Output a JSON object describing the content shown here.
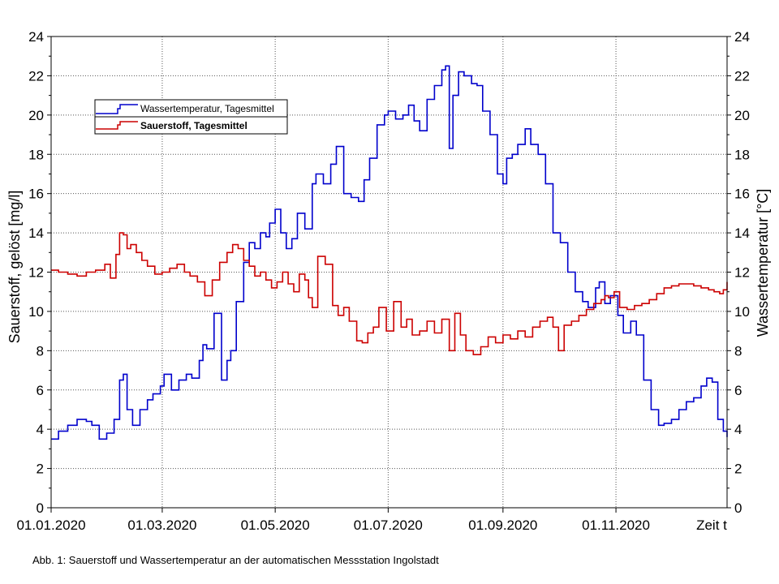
{
  "caption": "Abb. 1: Sauerstoff und Wassertemperatur an der automatischen Messstation Ingolstadt",
  "chart_data": {
    "type": "line",
    "xlabel": "Zeit t",
    "ylabel_left": "Sauerstoff, gelöst [mg/l]",
    "ylabel_right": "Wassertemperatur [°C]",
    "ylim": [
      0,
      24
    ],
    "yticks": [
      0,
      2,
      4,
      6,
      8,
      10,
      12,
      14,
      16,
      18,
      20,
      22,
      24
    ],
    "xlim": [
      "2020-01-01",
      "2020-12-31"
    ],
    "xtick_labels": [
      "01.01.2020",
      "01.03.2020",
      "01.05.2020",
      "01.07.2020",
      "01.09.2020",
      "01.11.2020"
    ],
    "xtick_dates": [
      "2020-01-01",
      "2020-03-01",
      "2020-05-01",
      "2020-07-01",
      "2020-09-01",
      "2020-11-01"
    ],
    "grid": true,
    "legend": "upper-left",
    "series": [
      {
        "name": "Wassertemperatur, Tagesmittel",
        "axis": "right",
        "color": "#0000cc",
        "x": [
          "2020-01-01",
          "2020-01-05",
          "2020-01-10",
          "2020-01-15",
          "2020-01-20",
          "2020-01-23",
          "2020-01-27",
          "2020-01-31",
          "2020-02-04",
          "2020-02-07",
          "2020-02-09",
          "2020-02-11",
          "2020-02-14",
          "2020-02-18",
          "2020-02-22",
          "2020-02-25",
          "2020-02-29",
          "2020-03-02",
          "2020-03-06",
          "2020-03-10",
          "2020-03-14",
          "2020-03-17",
          "2020-03-21",
          "2020-03-23",
          "2020-03-25",
          "2020-03-29",
          "2020-04-02",
          "2020-04-05",
          "2020-04-07",
          "2020-04-10",
          "2020-04-14",
          "2020-04-17",
          "2020-04-20",
          "2020-04-23",
          "2020-04-26",
          "2020-04-28",
          "2020-05-01",
          "2020-05-04",
          "2020-05-07",
          "2020-05-10",
          "2020-05-13",
          "2020-05-17",
          "2020-05-21",
          "2020-05-23",
          "2020-05-27",
          "2020-05-31",
          "2020-06-03",
          "2020-06-07",
          "2020-06-11",
          "2020-06-15",
          "2020-06-18",
          "2020-06-21",
          "2020-06-25",
          "2020-06-29",
          "2020-07-01",
          "2020-07-05",
          "2020-07-09",
          "2020-07-12",
          "2020-07-15",
          "2020-07-18",
          "2020-07-22",
          "2020-07-26",
          "2020-07-30",
          "2020-08-01",
          "2020-08-03",
          "2020-08-05",
          "2020-08-08",
          "2020-08-11",
          "2020-08-15",
          "2020-08-18",
          "2020-08-21",
          "2020-08-25",
          "2020-08-29",
          "2020-09-01",
          "2020-09-03",
          "2020-09-06",
          "2020-09-09",
          "2020-09-13",
          "2020-09-16",
          "2020-09-20",
          "2020-09-24",
          "2020-09-28",
          "2020-10-02",
          "2020-10-06",
          "2020-10-10",
          "2020-10-14",
          "2020-10-17",
          "2020-10-21",
          "2020-10-23",
          "2020-10-26",
          "2020-10-29",
          "2020-11-02",
          "2020-11-05",
          "2020-11-09",
          "2020-11-12",
          "2020-11-16",
          "2020-11-20",
          "2020-11-24",
          "2020-11-27",
          "2020-12-01",
          "2020-12-05",
          "2020-12-09",
          "2020-12-13",
          "2020-12-17",
          "2020-12-20",
          "2020-12-23",
          "2020-12-26",
          "2020-12-29",
          "2020-12-31"
        ],
        "y": [
          3.5,
          3.9,
          4.2,
          4.5,
          4.4,
          4.2,
          3.5,
          3.8,
          4.5,
          6.5,
          6.8,
          5.0,
          4.2,
          5.0,
          5.5,
          5.8,
          6.2,
          6.8,
          6.0,
          6.5,
          6.8,
          6.6,
          7.5,
          8.3,
          8.1,
          9.9,
          6.5,
          7.5,
          8.0,
          10.5,
          12.5,
          13.5,
          13.2,
          14.0,
          13.8,
          14.5,
          15.2,
          14.0,
          13.2,
          13.7,
          15.0,
          14.2,
          16.5,
          17.0,
          16.5,
          17.5,
          18.4,
          16.0,
          15.8,
          15.6,
          16.7,
          17.8,
          19.5,
          20.0,
          20.2,
          19.8,
          20.0,
          20.5,
          19.7,
          19.2,
          20.8,
          21.5,
          22.3,
          22.5,
          18.3,
          21.0,
          22.2,
          22.0,
          21.6,
          21.5,
          20.2,
          19.0,
          17.0,
          16.5,
          17.8,
          18.0,
          18.5,
          19.3,
          18.5,
          18.0,
          16.5,
          14.0,
          13.5,
          12.0,
          11.0,
          10.5,
          10.2,
          11.2,
          11.5,
          10.4,
          10.8,
          9.8,
          8.9,
          9.5,
          8.8,
          6.5,
          5.0,
          4.2,
          4.3,
          4.5,
          5.0,
          5.4,
          5.6,
          6.2,
          6.6,
          6.4,
          4.5,
          3.9,
          3.6
        ]
      },
      {
        "name": "Sauerstoff, Tagesmittel",
        "axis": "left",
        "color": "#cc0000",
        "x": [
          "2020-01-01",
          "2020-01-05",
          "2020-01-10",
          "2020-01-15",
          "2020-01-20",
          "2020-01-25",
          "2020-01-30",
          "2020-02-02",
          "2020-02-05",
          "2020-02-07",
          "2020-02-09",
          "2020-02-11",
          "2020-02-13",
          "2020-02-16",
          "2020-02-19",
          "2020-02-22",
          "2020-02-26",
          "2020-03-01",
          "2020-03-05",
          "2020-03-09",
          "2020-03-13",
          "2020-03-16",
          "2020-03-20",
          "2020-03-24",
          "2020-03-28",
          "2020-04-01",
          "2020-04-05",
          "2020-04-08",
          "2020-04-11",
          "2020-04-14",
          "2020-04-17",
          "2020-04-20",
          "2020-04-23",
          "2020-04-26",
          "2020-04-29",
          "2020-05-02",
          "2020-05-05",
          "2020-05-08",
          "2020-05-11",
          "2020-05-14",
          "2020-05-17",
          "2020-05-19",
          "2020-05-21",
          "2020-05-24",
          "2020-05-28",
          "2020-06-01",
          "2020-06-04",
          "2020-06-07",
          "2020-06-10",
          "2020-06-14",
          "2020-06-17",
          "2020-06-20",
          "2020-06-23",
          "2020-06-26",
          "2020-06-30",
          "2020-07-04",
          "2020-07-08",
          "2020-07-11",
          "2020-07-14",
          "2020-07-18",
          "2020-07-22",
          "2020-07-26",
          "2020-07-30",
          "2020-08-03",
          "2020-08-06",
          "2020-08-09",
          "2020-08-12",
          "2020-08-16",
          "2020-08-20",
          "2020-08-24",
          "2020-08-28",
          "2020-09-01",
          "2020-09-05",
          "2020-09-09",
          "2020-09-13",
          "2020-09-17",
          "2020-09-21",
          "2020-09-25",
          "2020-09-28",
          "2020-10-01",
          "2020-10-04",
          "2020-10-08",
          "2020-10-12",
          "2020-10-16",
          "2020-10-20",
          "2020-10-24",
          "2020-10-26",
          "2020-10-28",
          "2020-10-31",
          "2020-11-03",
          "2020-11-07",
          "2020-11-11",
          "2020-11-15",
          "2020-11-19",
          "2020-11-23",
          "2020-11-27",
          "2020-12-01",
          "2020-12-05",
          "2020-12-09",
          "2020-12-13",
          "2020-12-17",
          "2020-12-21",
          "2020-12-24",
          "2020-12-27",
          "2020-12-29",
          "2020-12-31"
        ],
        "y": [
          12.1,
          12.0,
          11.9,
          11.8,
          12.0,
          12.1,
          12.4,
          11.7,
          12.9,
          14.0,
          13.9,
          13.2,
          13.4,
          13.0,
          12.6,
          12.3,
          11.9,
          12.0,
          12.2,
          12.4,
          12.0,
          11.8,
          11.5,
          10.8,
          11.6,
          12.5,
          13.0,
          13.4,
          13.2,
          12.6,
          12.3,
          11.8,
          12.0,
          11.6,
          11.2,
          11.5,
          12.0,
          11.4,
          11.0,
          11.9,
          11.6,
          10.7,
          10.2,
          12.8,
          12.4,
          10.3,
          9.8,
          10.2,
          9.5,
          8.5,
          8.4,
          8.9,
          9.2,
          10.2,
          9.0,
          10.5,
          9.2,
          9.6,
          8.8,
          9.0,
          9.5,
          8.9,
          9.6,
          8.0,
          9.9,
          8.8,
          8.0,
          7.8,
          8.2,
          8.7,
          8.4,
          8.8,
          8.6,
          9.0,
          8.7,
          9.2,
          9.5,
          9.7,
          9.2,
          8.0,
          9.3,
          9.5,
          9.8,
          10.1,
          10.4,
          10.6,
          10.8,
          10.7,
          11.0,
          10.2,
          10.1,
          10.3,
          10.4,
          10.6,
          10.9,
          11.2,
          11.3,
          11.4,
          11.4,
          11.3,
          11.2,
          11.1,
          11.0,
          10.9,
          11.1,
          11.5
        ]
      }
    ]
  }
}
